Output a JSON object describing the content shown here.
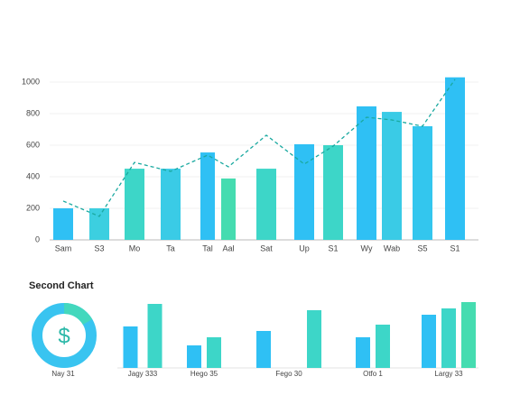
{
  "chart_data": [
    {
      "type": "bar",
      "categories": [
        "Sam",
        "S3",
        "Mo",
        "Ta",
        "Tal",
        "Aal",
        "Sat",
        "Up",
        "S1",
        "Wy",
        "Wab",
        "S5",
        "S1"
      ],
      "values": [
        200,
        200,
        451,
        451,
        554,
        389,
        451,
        606,
        600,
        846,
        811,
        720,
        1030
      ],
      "colors": [
        "#2fc0f4",
        "#3ccfe0",
        "#3dd6c8",
        "#3acbe6",
        "#2fc0f4",
        "#45dcb0",
        "#3dd6c8",
        "#2fc0f4",
        "#3dd6c8",
        "#2fc0f4",
        "#3acbe6",
        "#33c6ee",
        "#2fc0f4"
      ],
      "trend": {
        "values": [
          246,
          149,
          491,
          434,
          537,
          463,
          663,
          480,
          594,
          777,
          760,
          720,
          1017
        ],
        "color": "#1aa9a0",
        "style": "dashed"
      },
      "ylim": [
        0,
        1050
      ],
      "yticks": [
        0,
        200,
        400,
        600,
        800,
        1000
      ],
      "grid": true
    },
    {
      "type": "grouped-bar",
      "title": "Second Chart",
      "donut_symbol": "$",
      "categories": [
        "Nay 31",
        "Jagy 333",
        "Hego 35",
        "Fego 30",
        "Otfo 1",
        "Largy 33"
      ],
      "groups": [
        [],
        [
          46,
          71
        ],
        [
          25,
          34
        ],
        [
          41,
          64
        ],
        [
          34,
          48
        ],
        [
          59,
          66,
          73
        ]
      ],
      "colors": [
        "#2fc0f4",
        "#3dd6c8",
        "#45dcb0"
      ],
      "ylim": [
        0,
        80
      ]
    }
  ]
}
